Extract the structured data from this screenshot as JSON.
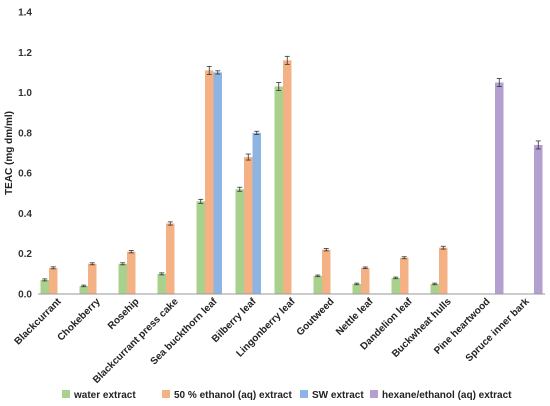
{
  "chart_data": {
    "type": "bar",
    "title": "",
    "xlabel": "",
    "ylabel": "TEAC (mg dm/ml)",
    "ylim": [
      0,
      1.4
    ],
    "yticks": [
      "0.0",
      "0.2",
      "0.4",
      "0.6",
      "0.8",
      "1.0",
      "1.2",
      "1.4"
    ],
    "grid": false,
    "legend": "bottom",
    "categories": [
      "Blackcurrant",
      "Chokeberry",
      "Rosehip",
      "Blackcurrant press cake",
      "Sea buckthorn leaf",
      "Bilberry leaf",
      "Lingonberry leaf",
      "Goutweed",
      "Nettle leaf",
      "Dandelion leaf",
      "Buckwheat hulls",
      "Pine heartwood",
      "Spruce inner bark"
    ],
    "series": [
      {
        "name": "water extract",
        "color": "#a9d18e",
        "values": [
          0.07,
          0.04,
          0.15,
          0.1,
          0.46,
          0.52,
          1.03,
          0.09,
          0.05,
          0.08,
          0.05,
          null,
          null
        ],
        "errors": [
          0.005,
          0.004,
          0.005,
          0.005,
          0.01,
          0.01,
          0.02,
          0.004,
          0.004,
          0.004,
          0.004,
          null,
          null
        ]
      },
      {
        "name": "50 % ethanol (aq) extract",
        "color": "#f4b183",
        "values": [
          0.13,
          0.15,
          0.21,
          0.35,
          1.11,
          0.68,
          1.16,
          0.22,
          0.13,
          0.18,
          0.23,
          null,
          null
        ],
        "errors": [
          0.005,
          0.005,
          0.006,
          0.008,
          0.02,
          0.015,
          0.02,
          0.006,
          0.004,
          0.005,
          0.007,
          null,
          null
        ]
      },
      {
        "name": "SW extract",
        "color": "#8eb4e3",
        "values": [
          null,
          null,
          null,
          null,
          1.1,
          0.8,
          null,
          null,
          null,
          null,
          null,
          null,
          null
        ],
        "errors": [
          null,
          null,
          null,
          null,
          0.008,
          0.008,
          null,
          null,
          null,
          null,
          null,
          null,
          null
        ]
      },
      {
        "name": "hexane/ethanol (aq) extract",
        "color": "#b4a0d0",
        "values": [
          null,
          null,
          null,
          null,
          null,
          null,
          null,
          null,
          null,
          null,
          null,
          1.05,
          0.74
        ],
        "errors": [
          null,
          null,
          null,
          null,
          null,
          null,
          null,
          null,
          null,
          null,
          null,
          0.02,
          0.02
        ]
      }
    ]
  }
}
